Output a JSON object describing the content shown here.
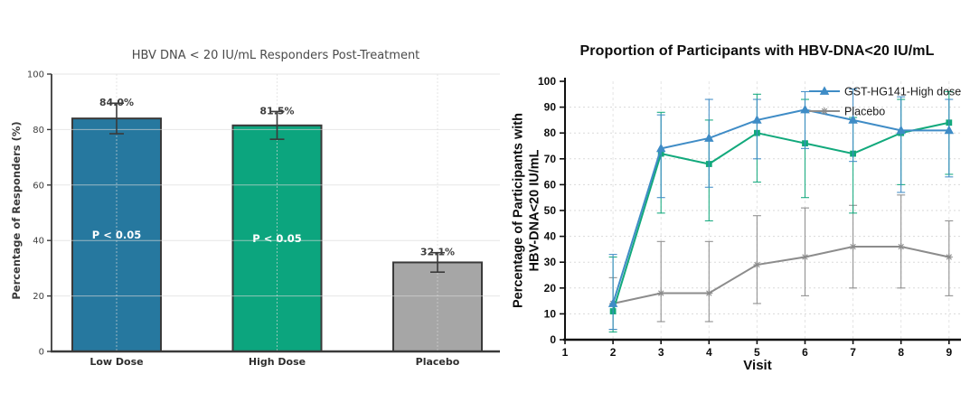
{
  "chart_data": [
    {
      "id": "hbv-responders-bar",
      "type": "bar",
      "title": "HBV DNA < 20 IU/mL Responders Post-Treatment",
      "xlabel": "",
      "ylabel": "Percentage of Responders (%)",
      "ylim": [
        0,
        100
      ],
      "yticks": [
        0,
        20,
        40,
        60,
        80,
        100
      ],
      "categories": [
        "Low Dose",
        "High Dose",
        "Placebo"
      ],
      "values": [
        84.0,
        81.5,
        32.1
      ],
      "value_labels": [
        "84.0%",
        "81.5%",
        "32.1%"
      ],
      "error_low": [
        5.5,
        5,
        3.5
      ],
      "error_high": [
        5.5,
        5,
        3.5
      ],
      "annotations": [
        "P < 0.05",
        "P < 0.05",
        ""
      ],
      "bar_colors": [
        "#26789F",
        "#0CA57E",
        "#A6A6A6"
      ],
      "bar_edge_color": "#3A3A3A",
      "grid": true,
      "legend": null
    },
    {
      "id": "hbv-proportion-line",
      "type": "line",
      "title": "Proportion of Participants with HBV-DNA<20 IU/mL",
      "xlabel": "Visit",
      "ylabel": "Percentage of Participants with HBV-DNA<20 IU/mL",
      "ylabel_lines": [
        "Percentage of Participants with",
        "HBV-DNA<20 IU/mL"
      ],
      "xlim": [
        1,
        9
      ],
      "ylim": [
        0,
        100
      ],
      "xticks": [
        1,
        2,
        3,
        4,
        5,
        6,
        7,
        8,
        9
      ],
      "yticks": [
        0,
        10,
        20,
        30,
        40,
        50,
        60,
        70,
        80,
        90,
        100
      ],
      "x": [
        2,
        3,
        4,
        5,
        6,
        7,
        8,
        9
      ],
      "grid": true,
      "legend_position": "top-right",
      "series": [
        {
          "name": "GST-HG141-High dose",
          "in_legend": true,
          "marker": "triangle",
          "color": "#3F8CC6",
          "values": [
            14,
            74,
            78,
            85,
            89,
            85,
            81,
            81
          ],
          "err_low": [
            4,
            55,
            59,
            70,
            74,
            69,
            57,
            63
          ],
          "err_high": [
            33,
            87,
            93,
            93,
            96,
            97,
            94,
            93
          ]
        },
        {
          "name": "",
          "in_legend": false,
          "marker": "square",
          "color": "#12A97C",
          "values": [
            11,
            72,
            68,
            80,
            76,
            72,
            80,
            84
          ],
          "err_low": [
            3,
            49,
            46,
            61,
            55,
            49,
            60,
            64
          ],
          "err_high": [
            32,
            88,
            85,
            95,
            93,
            86,
            93,
            96
          ]
        },
        {
          "name": "Placebo",
          "in_legend": true,
          "marker": "star",
          "color": "#8C8C8C",
          "values": [
            14,
            18,
            18,
            29,
            32,
            36,
            36,
            32
          ],
          "err_low": [
            4,
            7,
            7,
            14,
            17,
            20,
            20,
            17
          ],
          "err_high": [
            24,
            38,
            38,
            48,
            51,
            52,
            56,
            46
          ]
        }
      ]
    }
  ]
}
